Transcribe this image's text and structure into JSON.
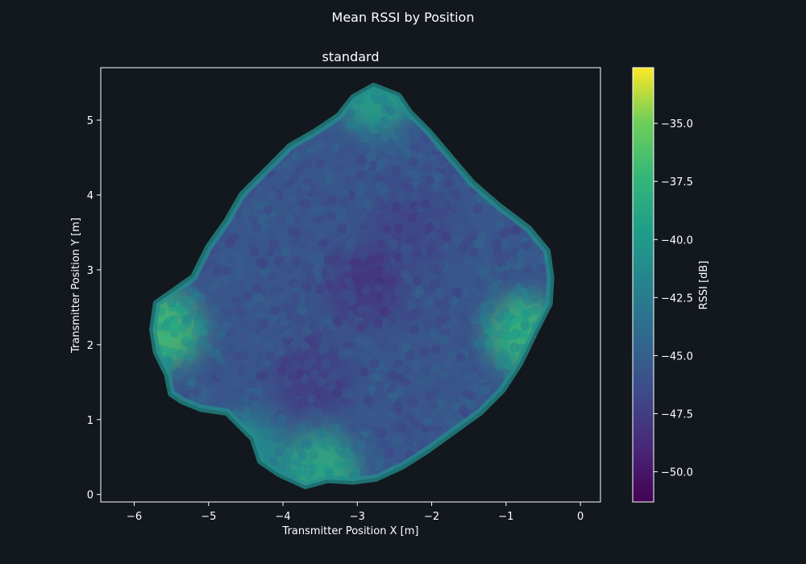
{
  "chart_data": {
    "type": "scatter",
    "suptitle": "Mean RSSI by Position",
    "title": "standard",
    "xlabel": "Transmitter Position X [m]",
    "ylabel": "Transmitter Position Y [m]",
    "xlim": [
      -6.45,
      0.27
    ],
    "ylim": [
      -0.1,
      5.7
    ],
    "xticks": [
      -6,
      -5,
      -4,
      -3,
      -2,
      -1,
      0
    ],
    "yticks": [
      0,
      1,
      2,
      3,
      4,
      5
    ],
    "grid": false,
    "colorbar": {
      "label": "RSSI [dB]",
      "range": [
        -51.3,
        -32.6
      ],
      "ticks": [
        -35.0,
        -37.5,
        -40.0,
        -42.5,
        -45.0,
        -47.5,
        -50.0
      ],
      "tick_labels": [
        "−35.0",
        "−37.5",
        "−40.0",
        "−42.5",
        "−45.0",
        "−47.5",
        "−50.0"
      ],
      "colormap": "viridis"
    },
    "outline": {
      "name": "coverage boundary (x, y) in meters",
      "points": [
        [
          -2.78,
          5.45
        ],
        [
          -2.45,
          5.32
        ],
        [
          -2.3,
          5.1
        ],
        [
          -2.05,
          4.85
        ],
        [
          -1.75,
          4.5
        ],
        [
          -1.45,
          4.15
        ],
        [
          -1.1,
          3.85
        ],
        [
          -0.7,
          3.55
        ],
        [
          -0.45,
          3.25
        ],
        [
          -0.4,
          2.9
        ],
        [
          -0.42,
          2.55
        ],
        [
          -0.6,
          2.2
        ],
        [
          -0.82,
          1.75
        ],
        [
          -1.05,
          1.4
        ],
        [
          -1.35,
          1.1
        ],
        [
          -1.7,
          0.85
        ],
        [
          -2.05,
          0.6
        ],
        [
          -2.4,
          0.38
        ],
        [
          -2.75,
          0.22
        ],
        [
          -3.05,
          0.18
        ],
        [
          -3.4,
          0.2
        ],
        [
          -3.7,
          0.12
        ],
        [
          -4.05,
          0.28
        ],
        [
          -4.3,
          0.45
        ],
        [
          -4.4,
          0.75
        ],
        [
          -4.75,
          1.1
        ],
        [
          -5.1,
          1.15
        ],
        [
          -5.35,
          1.25
        ],
        [
          -5.5,
          1.35
        ],
        [
          -5.55,
          1.6
        ],
        [
          -5.7,
          1.9
        ],
        [
          -5.75,
          2.2
        ],
        [
          -5.7,
          2.55
        ],
        [
          -5.2,
          2.9
        ],
        [
          -5.0,
          3.3
        ],
        [
          -4.75,
          3.65
        ],
        [
          -4.55,
          4.0
        ],
        [
          -4.2,
          4.35
        ],
        [
          -3.9,
          4.65
        ],
        [
          -3.55,
          4.85
        ],
        [
          -3.25,
          5.05
        ],
        [
          -3.05,
          5.3
        ]
      ]
    },
    "rssi_hotspots": [
      {
        "x": -5.6,
        "y": 2.2,
        "rssi": -36.5
      },
      {
        "x": -0.75,
        "y": 2.15,
        "rssi": -37.0
      },
      {
        "x": -3.5,
        "y": 0.32,
        "rssi": -38.0
      },
      {
        "x": -2.75,
        "y": 5.35,
        "rssi": -39.0
      },
      {
        "x": -4.5,
        "y": 0.55,
        "rssi": -40.5
      },
      {
        "x": -2.9,
        "y": 2.8,
        "rssi": -48.0
      },
      {
        "x": -2.3,
        "y": 3.5,
        "rssi": -47.0
      },
      {
        "x": -3.6,
        "y": 1.55,
        "rssi": -47.5
      }
    ],
    "rssi_center": -45.8
  }
}
